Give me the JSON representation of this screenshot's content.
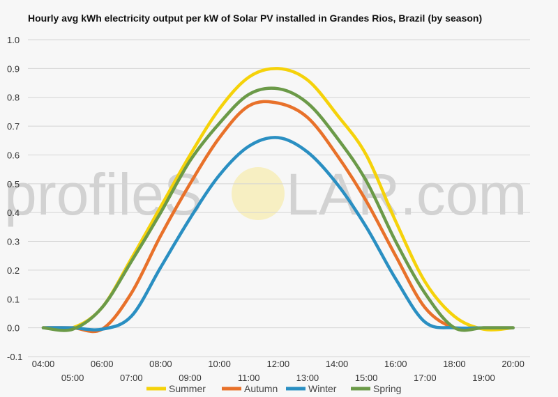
{
  "chart_data": {
    "type": "line",
    "title": "Hourly avg kWh electricity output per kW of Solar PV installed in Grandes Rios, Brazil (by season)",
    "xlabel": "",
    "ylabel": "",
    "x": [
      "04:00",
      "05:00",
      "06:00",
      "07:00",
      "08:00",
      "09:00",
      "10:00",
      "11:00",
      "12:00",
      "13:00",
      "14:00",
      "15:00",
      "16:00",
      "17:00",
      "18:00",
      "19:00",
      "20:00"
    ],
    "ylim": [
      -0.1,
      1.0
    ],
    "yticks": [
      "1.0",
      "0.9",
      "0.8",
      "0.7",
      "0.6",
      "0.5",
      "0.4",
      "0.3",
      "0.2",
      "0.1",
      "0.0",
      "-0.1"
    ],
    "grid": true,
    "legend_position": "bottom",
    "series": [
      {
        "name": "Summer",
        "color": "#f5d20a",
        "values": [
          0.0,
          0.0,
          0.07,
          0.24,
          0.42,
          0.6,
          0.76,
          0.87,
          0.9,
          0.86,
          0.74,
          0.6,
          0.37,
          0.16,
          0.04,
          -0.005,
          0.0
        ]
      },
      {
        "name": "Autumn",
        "color": "#e8712a",
        "values": [
          0.0,
          0.0,
          -0.005,
          0.12,
          0.32,
          0.5,
          0.66,
          0.77,
          0.78,
          0.73,
          0.6,
          0.44,
          0.25,
          0.07,
          0.0,
          0.0,
          0.0
        ]
      },
      {
        "name": "Winter",
        "color": "#2a8fc2",
        "values": [
          0.0,
          0.0,
          -0.005,
          0.04,
          0.21,
          0.38,
          0.53,
          0.63,
          0.66,
          0.61,
          0.5,
          0.35,
          0.17,
          0.02,
          0.0,
          0.0,
          0.0
        ]
      },
      {
        "name": "Spring",
        "color": "#6b9a48",
        "values": [
          0.0,
          -0.005,
          0.07,
          0.23,
          0.4,
          0.58,
          0.71,
          0.81,
          0.83,
          0.78,
          0.66,
          0.51,
          0.3,
          0.12,
          0.0,
          0.0,
          0.0
        ]
      }
    ]
  },
  "watermark": {
    "left": "profileS",
    "right": "LAR.com",
    "sun_color": "#f7efc2"
  }
}
